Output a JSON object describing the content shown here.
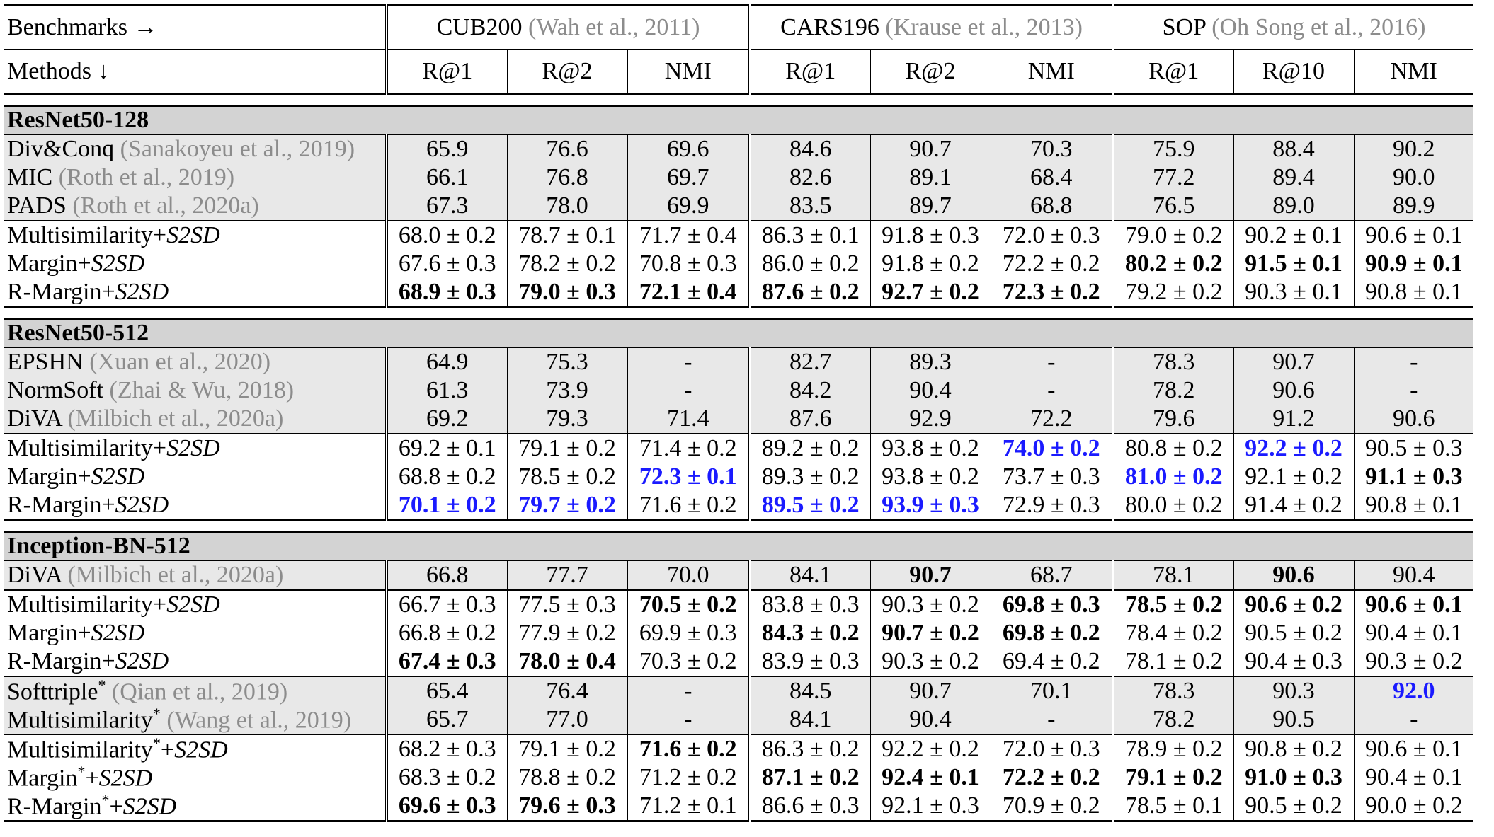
{
  "header": {
    "benchmarks_label": "Benchmarks →",
    "methods_label": "Methods ↓",
    "benchmarks": [
      {
        "name": "CUB200",
        "cite": "(Wah et al., 2011)"
      },
      {
        "name": "CARS196",
        "cite": "(Krause et al., 2013)"
      },
      {
        "name": "SOP",
        "cite": "(Oh Song et al., 2016)"
      }
    ],
    "metrics": [
      "R@1",
      "R@2",
      "NMI",
      "R@1",
      "R@2",
      "NMI",
      "R@1",
      "R@10",
      "NMI"
    ]
  },
  "style": {
    "highlight_blue": "#1a1aff",
    "cite_gray": "#8c8c8c",
    "section_bg": "#d3d3d3",
    "baseline_bg": "#e8e8e8"
  },
  "sections": [
    {
      "title": "ResNet50-128",
      "groups": [
        {
          "shaded": true,
          "rows": [
            {
              "method": "Div&Conq",
              "cite": "(Sanakoyeu et al., 2019)",
              "values": [
                "65.9",
                "76.6",
                "69.6",
                "84.6",
                "90.7",
                "70.3",
                "75.9",
                "88.4",
                "90.2"
              ]
            },
            {
              "method": "MIC",
              "cite": "(Roth et al., 2019)",
              "values": [
                "66.1",
                "76.8",
                "69.7",
                "82.6",
                "89.1",
                "68.4",
                "77.2",
                "89.4",
                "90.0"
              ]
            },
            {
              "method": "PADS",
              "cite": "(Roth et al., 2020a)",
              "values": [
                "67.3",
                "78.0",
                "69.9",
                "83.5",
                "89.7",
                "68.8",
                "76.5",
                "89.0",
                "89.9"
              ]
            }
          ]
        },
        {
          "shaded": false,
          "rows": [
            {
              "method": "Multisimilarity+",
              "suffix": "S2SD",
              "values": [
                "68.0 ± 0.2",
                "78.7 ± 0.1",
                "71.7 ± 0.4",
                "86.3 ± 0.1",
                "91.8 ± 0.3",
                "72.0 ± 0.3",
                "79.0 ± 0.2",
                "90.2 ± 0.1",
                "90.6 ± 0.1"
              ],
              "marks": [
                "",
                "",
                "",
                "",
                "",
                "",
                "",
                "",
                ""
              ]
            },
            {
              "method": "Margin+",
              "suffix": "S2SD",
              "values": [
                "67.6 ± 0.3",
                "78.2 ± 0.2",
                "70.8 ± 0.3",
                "86.0 ± 0.2",
                "91.8 ± 0.2",
                "72.2 ± 0.2",
                "80.2 ± 0.2",
                "91.5 ± 0.1",
                "90.9 ± 0.1"
              ],
              "marks": [
                "",
                "",
                "",
                "",
                "",
                "",
                "b",
                "b",
                "b"
              ]
            },
            {
              "method": "R-Margin+",
              "suffix": "S2SD",
              "values": [
                "68.9 ± 0.3",
                "79.0 ± 0.3",
                "72.1 ± 0.4",
                "87.6 ± 0.2",
                "92.7 ± 0.2",
                "72.3 ± 0.2",
                "79.2 ± 0.2",
                "90.3 ± 0.1",
                "90.8 ± 0.1"
              ],
              "marks": [
                "b",
                "b",
                "b",
                "b",
                "b",
                "b",
                "",
                "",
                ""
              ]
            }
          ]
        }
      ]
    },
    {
      "title": "ResNet50-512",
      "groups": [
        {
          "shaded": true,
          "rows": [
            {
              "method": "EPSHN",
              "cite": "(Xuan et al., 2020)",
              "values": [
                "64.9",
                "75.3",
                "-",
                "82.7",
                "89.3",
                "-",
                "78.3",
                "90.7",
                "-"
              ]
            },
            {
              "method": "NormSoft",
              "cite": "(Zhai & Wu, 2018)",
              "values": [
                "61.3",
                "73.9",
                "-",
                "84.2",
                "90.4",
                "-",
                "78.2",
                "90.6",
                "-"
              ]
            },
            {
              "method": "DiVA",
              "cite": "(Milbich et al., 2020a)",
              "values": [
                "69.2",
                "79.3",
                "71.4",
                "87.6",
                "92.9",
                "72.2",
                "79.6",
                "91.2",
                "90.6"
              ]
            }
          ]
        },
        {
          "shaded": false,
          "rows": [
            {
              "method": "Multisimilarity+",
              "suffix": "S2SD",
              "values": [
                "69.2 ± 0.1",
                "79.1 ± 0.2",
                "71.4 ± 0.2",
                "89.2 ± 0.2",
                "93.8 ± 0.2",
                "74.0 ± 0.2",
                "80.8 ± 0.2",
                "92.2 ± 0.2",
                "90.5 ± 0.3"
              ],
              "marks": [
                "",
                "",
                "",
                "",
                "",
                "blue",
                "",
                "blue",
                ""
              ]
            },
            {
              "method": "Margin+",
              "suffix": "S2SD",
              "values": [
                "68.8 ± 0.2",
                "78.5 ± 0.2",
                "72.3 ± 0.1",
                "89.3 ± 0.2",
                "93.8 ± 0.2",
                "73.7 ± 0.3",
                "81.0 ± 0.2",
                "92.1 ± 0.2",
                "91.1 ± 0.3"
              ],
              "marks": [
                "",
                "",
                "blue",
                "",
                "",
                "",
                "blue",
                "",
                "b"
              ]
            },
            {
              "method": "R-Margin+",
              "suffix": "S2SD",
              "values": [
                "70.1 ± 0.2",
                "79.7 ± 0.2",
                "71.6 ± 0.2",
                "89.5 ± 0.2",
                "93.9 ± 0.3",
                "72.9 ± 0.3",
                "80.0 ± 0.2",
                "91.4 ± 0.2",
                "90.8 ± 0.1"
              ],
              "marks": [
                "blue",
                "blue",
                "",
                "blue",
                "blue",
                "",
                "",
                "",
                ""
              ]
            }
          ]
        }
      ]
    },
    {
      "title": "Inception-BN-512",
      "groups": [
        {
          "shaded": true,
          "rows": [
            {
              "method": "DiVA",
              "cite": "(Milbich et al., 2020a)",
              "values": [
                "66.8",
                "77.7",
                "70.0",
                "84.1",
                "90.7",
                "68.7",
                "78.1",
                "90.6",
                "90.4"
              ],
              "marks": [
                "",
                "",
                "",
                "",
                "b",
                "",
                "",
                "b",
                ""
              ]
            }
          ]
        },
        {
          "shaded": false,
          "rows": [
            {
              "method": "Multisimilarity+",
              "suffix": "S2SD",
              "values": [
                "66.7 ± 0.3",
                "77.5 ± 0.3",
                "70.5 ± 0.2",
                "83.8 ± 0.3",
                "90.3 ± 0.2",
                "69.8 ± 0.3",
                "78.5 ± 0.2",
                "90.6 ± 0.2",
                "90.6 ± 0.1"
              ],
              "marks": [
                "",
                "",
                "b",
                "",
                "",
                "b",
                "b",
                "b",
                "b"
              ]
            },
            {
              "method": "Margin+",
              "suffix": "S2SD",
              "values": [
                "66.8 ± 0.2",
                "77.9 ± 0.2",
                "69.9 ± 0.3",
                "84.3 ± 0.2",
                "90.7 ± 0.2",
                "69.8 ± 0.2",
                "78.4 ± 0.2",
                "90.5 ± 0.2",
                "90.4 ± 0.1"
              ],
              "marks": [
                "",
                "",
                "",
                "b",
                "b",
                "b",
                "",
                "",
                ""
              ]
            },
            {
              "method": "R-Margin+",
              "suffix": "S2SD",
              "values": [
                "67.4 ± 0.3",
                "78.0 ± 0.4",
                "70.3 ± 0.2",
                "83.9 ± 0.3",
                "90.3 ± 0.2",
                "69.4 ± 0.2",
                "78.1 ± 0.2",
                "90.4 ± 0.3",
                "90.3 ± 0.2"
              ],
              "marks": [
                "b",
                "b",
                "",
                "",
                "",
                "",
                "",
                "",
                ""
              ]
            }
          ]
        },
        {
          "shaded": true,
          "rows": [
            {
              "method": "Softtriple",
              "star": "*",
              "cite": "(Qian et al., 2019)",
              "values": [
                "65.4",
                "76.4",
                "-",
                "84.5",
                "90.7",
                "70.1",
                "78.3",
                "90.3",
                "92.0"
              ],
              "marks": [
                "",
                "",
                "",
                "",
                "",
                "",
                "",
                "",
                "blue"
              ]
            },
            {
              "method": "Multisimilarity",
              "star": "*",
              "cite": "(Wang et al., 2019)",
              "values": [
                "65.7",
                "77.0",
                "-",
                "84.1",
                "90.4",
                "-",
                "78.2",
                "90.5",
                "-"
              ]
            }
          ]
        },
        {
          "shaded": false,
          "rows": [
            {
              "method": "Multisimilarity",
              "star": "*",
              "mid": "+",
              "suffix": "S2SD",
              "values": [
                "68.2 ± 0.3",
                "79.1 ± 0.2",
                "71.6 ± 0.2",
                "86.3 ± 0.2",
                "92.2 ± 0.2",
                "72.0 ± 0.3",
                "78.9 ± 0.2",
                "90.8 ± 0.2",
                "90.6 ± 0.1"
              ],
              "marks": [
                "",
                "",
                "b",
                "",
                "",
                "",
                "",
                "",
                ""
              ]
            },
            {
              "method": "Margin",
              "star": "*",
              "mid": "+",
              "suffix": "S2SD",
              "values": [
                "68.3 ± 0.2",
                "78.8 ± 0.2",
                "71.2 ± 0.2",
                "87.1 ± 0.2",
                "92.4 ± 0.1",
                "72.2 ± 0.2",
                "79.1 ± 0.2",
                "91.0 ± 0.3",
                "90.4 ± 0.1"
              ],
              "marks": [
                "",
                "",
                "",
                "b",
                "b",
                "b",
                "b",
                "b",
                ""
              ]
            },
            {
              "method": "R-Margin",
              "star": "*",
              "mid": "+",
              "suffix": "S2SD",
              "values": [
                "69.6 ± 0.3",
                "79.6 ± 0.3",
                "71.2 ± 0.1",
                "86.6 ± 0.3",
                "92.1 ± 0.3",
                "70.9 ± 0.2",
                "78.5 ± 0.1",
                "90.5 ± 0.2",
                "90.0 ± 0.2"
              ],
              "marks": [
                "b",
                "b",
                "",
                "",
                "",
                "",
                "",
                "",
                ""
              ]
            }
          ]
        }
      ]
    }
  ]
}
